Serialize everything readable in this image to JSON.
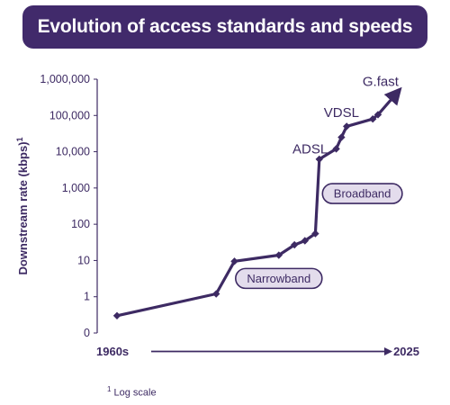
{
  "title": "Evolution of access standards and speeds",
  "footnote": "Log scale",
  "footnote_marker": "1",
  "colors": {
    "accent": "#412a6b",
    "line": "#3d2a63",
    "label_fill": "#e3dcec"
  },
  "chart_data": {
    "type": "line",
    "title": "Evolution of access standards and speeds",
    "ylabel": "Downstream rate (kbps)",
    "ylabel_superscript": "1",
    "yscale": "log",
    "ylim": [
      0.1,
      1000000
    ],
    "y_tick_labels": [
      "0",
      "1",
      "10",
      "100",
      "1,000",
      "10,000",
      "100,000",
      "1,000,000"
    ],
    "y_tick_values": [
      0.1,
      1,
      10,
      100,
      1000,
      10000,
      100000,
      1000000
    ],
    "x_start_label": "1960s",
    "x_end_label": "2025",
    "xlim": [
      0,
      100
    ],
    "grid": false,
    "series": [
      {
        "points": [
          {
            "x": 0,
            "y": 0.3
          },
          {
            "x": 38,
            "y": 1.2
          },
          {
            "x": 45,
            "y": 9.5
          },
          {
            "x": 62,
            "y": 14
          },
          {
            "x": 68,
            "y": 27
          },
          {
            "x": 72,
            "y": 35
          },
          {
            "x": 76,
            "y": 55
          },
          {
            "x": 77.5,
            "y": 6200
          },
          {
            "x": 84,
            "y": 12000
          },
          {
            "x": 86,
            "y": 25000
          },
          {
            "x": 88,
            "y": 50000
          },
          {
            "x": 98,
            "y": 80000
          },
          {
            "x": 100,
            "y": 105000
          }
        ],
        "arrow_to": {
          "x": 107,
          "y": 400000
        }
      }
    ],
    "annotations": [
      {
        "text": "ADSL",
        "x": 74,
        "y": 9000,
        "style": "plain"
      },
      {
        "text": "VDSL",
        "x": 86,
        "y": 90000,
        "style": "plain"
      },
      {
        "text": "G.fast",
        "x": 101,
        "y": 650000,
        "style": "plain"
      },
      {
        "text": "Broadband",
        "x": 94,
        "y": 700,
        "style": "boxed"
      },
      {
        "text": "Narrowband",
        "x": 62,
        "y": 3.2,
        "style": "boxed"
      }
    ]
  }
}
